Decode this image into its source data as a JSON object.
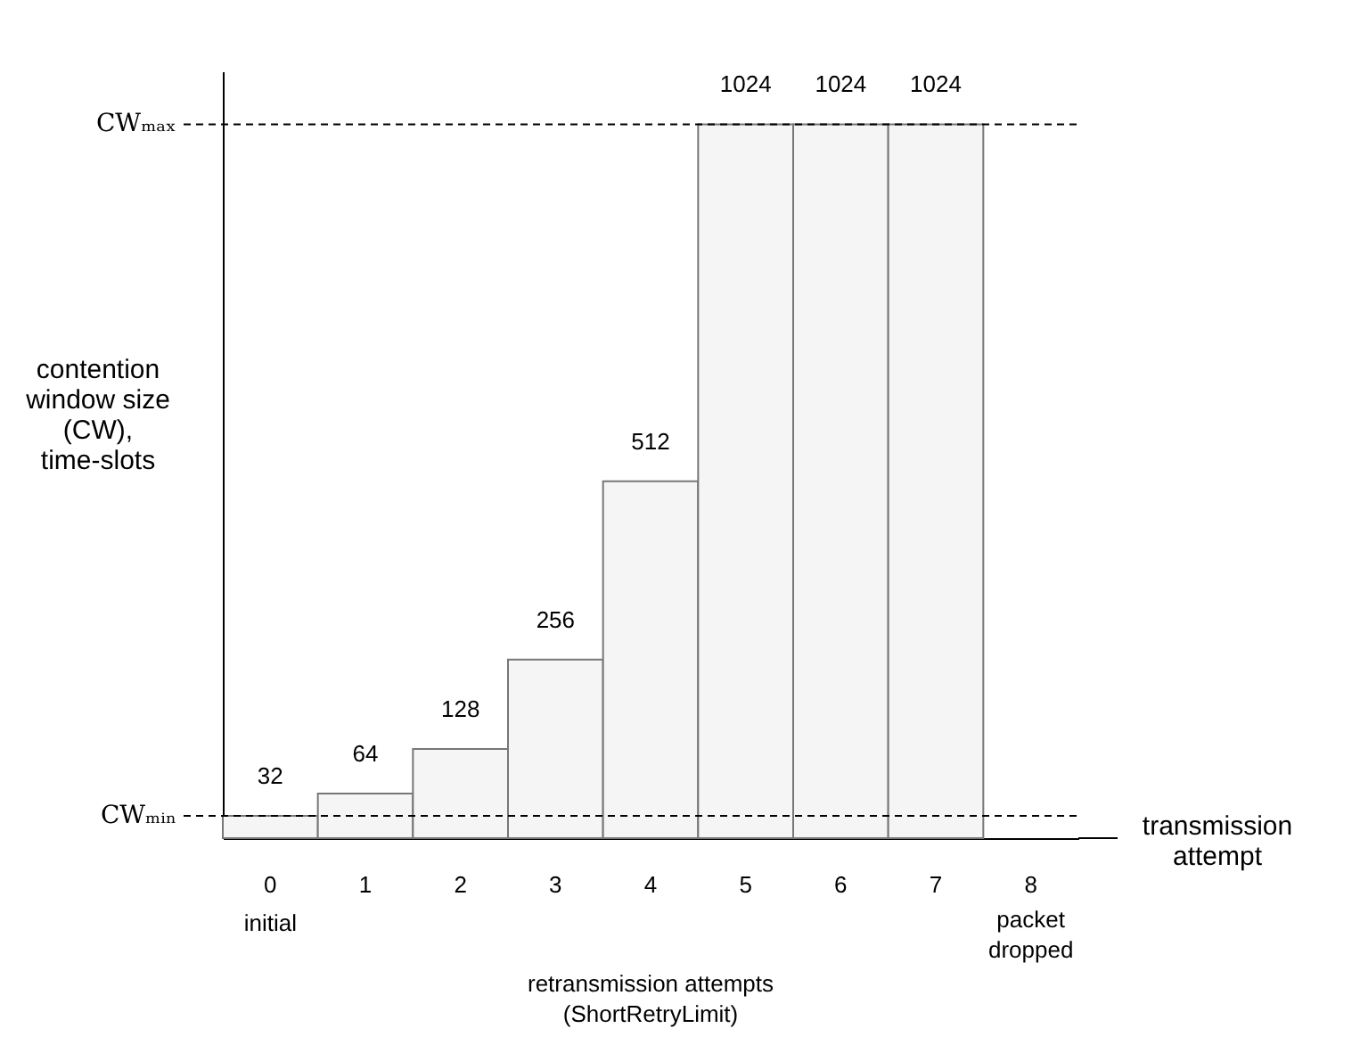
{
  "chart_data": {
    "type": "bar",
    "xlabel": "transmission attempt",
    "ylabel": "contention window size (CW), time-slots",
    "categories": [
      "0",
      "1",
      "2",
      "3",
      "4",
      "5",
      "6",
      "7",
      "8"
    ],
    "values": [
      32,
      64,
      128,
      256,
      512,
      1024,
      1024,
      1024,
      null
    ],
    "color": "#f5f5f5",
    "data_labels": true,
    "ylim": [
      0,
      1100
    ],
    "tick_labels": "x",
    "grid": false,
    "ref_lines": [
      {
        "axis": "y",
        "value": 1024,
        "label": "CWₘₐₓ",
        "line_style": "dashed",
        "color": "#000000"
      },
      {
        "axis": "y",
        "value": 32,
        "label": "CWₘᵢₙ",
        "line_style": "dashed",
        "color": "#000000"
      }
    ],
    "annotations": [
      "initial",
      "packet dropped",
      "retransmission attempts (ShortRetryLimit)"
    ]
  }
}
